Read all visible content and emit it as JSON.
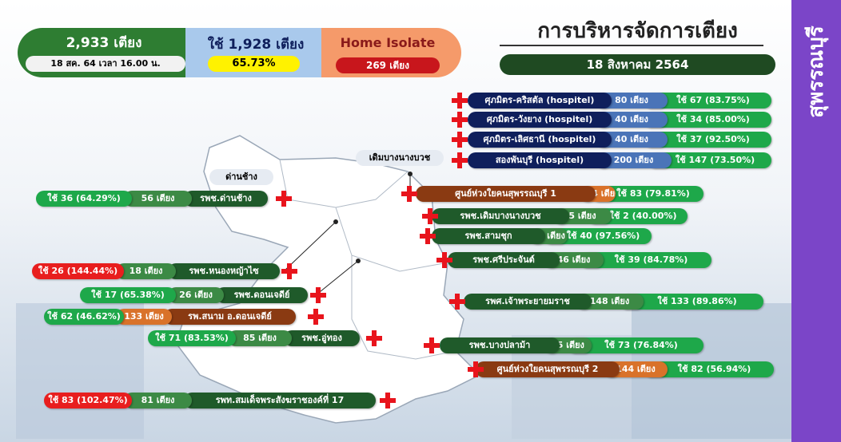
{
  "header": {
    "total_beds": "2,933 เตียง",
    "as_of": "18 สค. 64 เวลา 16.00 น.",
    "used": "ใช้ 1,928 เตียง",
    "used_pct": "65.73%",
    "home_isolate": "Home Isolate",
    "home_isolate_beds": "269 เตียง"
  },
  "title": "การบริหารจัดการเตียง",
  "date": "18 สิงหาคม 2564",
  "province": "สุพรรณบุรี",
  "map_labels": [
    "ด่านช้าง",
    "เดิมบางนางบวช"
  ],
  "right_rows": [
    {
      "name": "ศุภมิตร-คริสตัล (hospitel)",
      "beds": "80 เตียง",
      "used": "ใช้ 67 (83.75%)",
      "name_color": "#0f1f5c",
      "beds_color": "#4a74b8",
      "used_color": "#1ea84a"
    },
    {
      "name": "ศุภมิตร-วังยาง (hospitel)",
      "beds": "40 เตียง",
      "used": "ใช้ 34 (85.00%)",
      "name_color": "#0f1f5c",
      "beds_color": "#4a74b8",
      "used_color": "#1ea84a"
    },
    {
      "name": "ศุภมิตร-เลิศธานี (hospitel)",
      "beds": "40 เตียง",
      "used": "ใช้ 37 (92.50%)",
      "name_color": "#0f1f5c",
      "beds_color": "#4a74b8",
      "used_color": "#1ea84a"
    },
    {
      "name": "สองพันบุรี (hospitel)",
      "beds": "200 เตียง",
      "used": "ใช้ 147 (73.50%)",
      "name_color": "#0f1f5c",
      "beds_color": "#4a74b8",
      "used_color": "#1ea84a"
    },
    {
      "name": "ศูนย์ห่วงใยคนสุพรรณบุรี 1",
      "beds": "104 เตียง",
      "used": "ใช้ 83 (79.81%)",
      "name_color": "#8a3a12",
      "beds_color": "#d9722a",
      "used_color": "#1ea84a"
    },
    {
      "name": "รพช.เดิมบางนางบวช",
      "beds": "5 เตียง",
      "used": "ใช้ 2 (40.00%)",
      "name_color": "#1f5a2a",
      "beds_color": "#3c8a45",
      "used_color": "#1ea84a"
    },
    {
      "name": "รพช.สามชุก",
      "beds": "41 เตียง",
      "used": "ใช้ 40 (97.56%)",
      "name_color": "#1f5a2a",
      "beds_color": "#3c8a45",
      "used_color": "#1ea84a"
    },
    {
      "name": "รพช.ศรีประจันต์",
      "beds": "46 เตียง",
      "used": "ใช้ 39 (84.78%)",
      "name_color": "#1f5a2a",
      "beds_color": "#3c8a45",
      "used_color": "#1ea84a"
    },
    {
      "name": "รพศ.เจ้าพระยายมราช",
      "beds": "148 เตียง",
      "used": "ใช้ 133 (89.86%)",
      "name_color": "#1f5a2a",
      "beds_color": "#3c8a45",
      "used_color": "#1ea84a"
    },
    {
      "name": "รพช.บางปลาม้า",
      "beds": "95 เตียง",
      "used": "ใช้ 73 (76.84%)",
      "name_color": "#1f5a2a",
      "beds_color": "#3c8a45",
      "used_color": "#1ea84a"
    },
    {
      "name": "ศูนย์ห่วงใยคนสุพรรณบุรี 2",
      "beds": "144 เตียง",
      "used": "ใช้ 82 (56.94%)",
      "name_color": "#8a3a12",
      "beds_color": "#d9722a",
      "used_color": "#1ea84a"
    }
  ],
  "left_rows": [
    {
      "used": "ใช้ 36 (64.29%)",
      "beds": "56 เตียง",
      "name": "รพช.ด่านช้าง",
      "used_color": "#1ea84a",
      "beds_color": "#3c8a45",
      "name_color": "#1f5a2a"
    },
    {
      "used": "ใช้ 26 (144.44%)",
      "beds": "18 เตียง",
      "name": "รพช.หนองหญ้าไซ",
      "used_color": "#e81e1e",
      "beds_color": "#3c8a45",
      "name_color": "#1f5a2a"
    },
    {
      "used": "ใช้ 17 (65.38%)",
      "beds": "26 เตียง",
      "name": "รพช.ดอนเจดีย์",
      "used_color": "#1ea84a",
      "beds_color": "#3c8a45",
      "name_color": "#1f5a2a"
    },
    {
      "used": "ใช้ 62 (46.62%)",
      "beds": "133 เตียง",
      "name": "รพ.สนาม อ.ดอนเจดีย์",
      "used_color": "#1ea84a",
      "beds_color": "#d9722a",
      "name_color": "#8a3a12"
    },
    {
      "used": "ใช้ 71 (83.53%)",
      "beds": "85 เตียง",
      "name": "รพช.อู่ทอง",
      "used_color": "#1ea84a",
      "beds_color": "#3c8a45",
      "name_color": "#1f5a2a"
    },
    {
      "used": "ใช้ 83 (102.47%)",
      "beds": "81 เตียง",
      "name": "รพท.สมเด็จพระสังฆราชองค์ที่ 17",
      "used_color": "#e81e1e",
      "beds_color": "#3c8a45",
      "name_color": "#1f5a2a"
    }
  ]
}
